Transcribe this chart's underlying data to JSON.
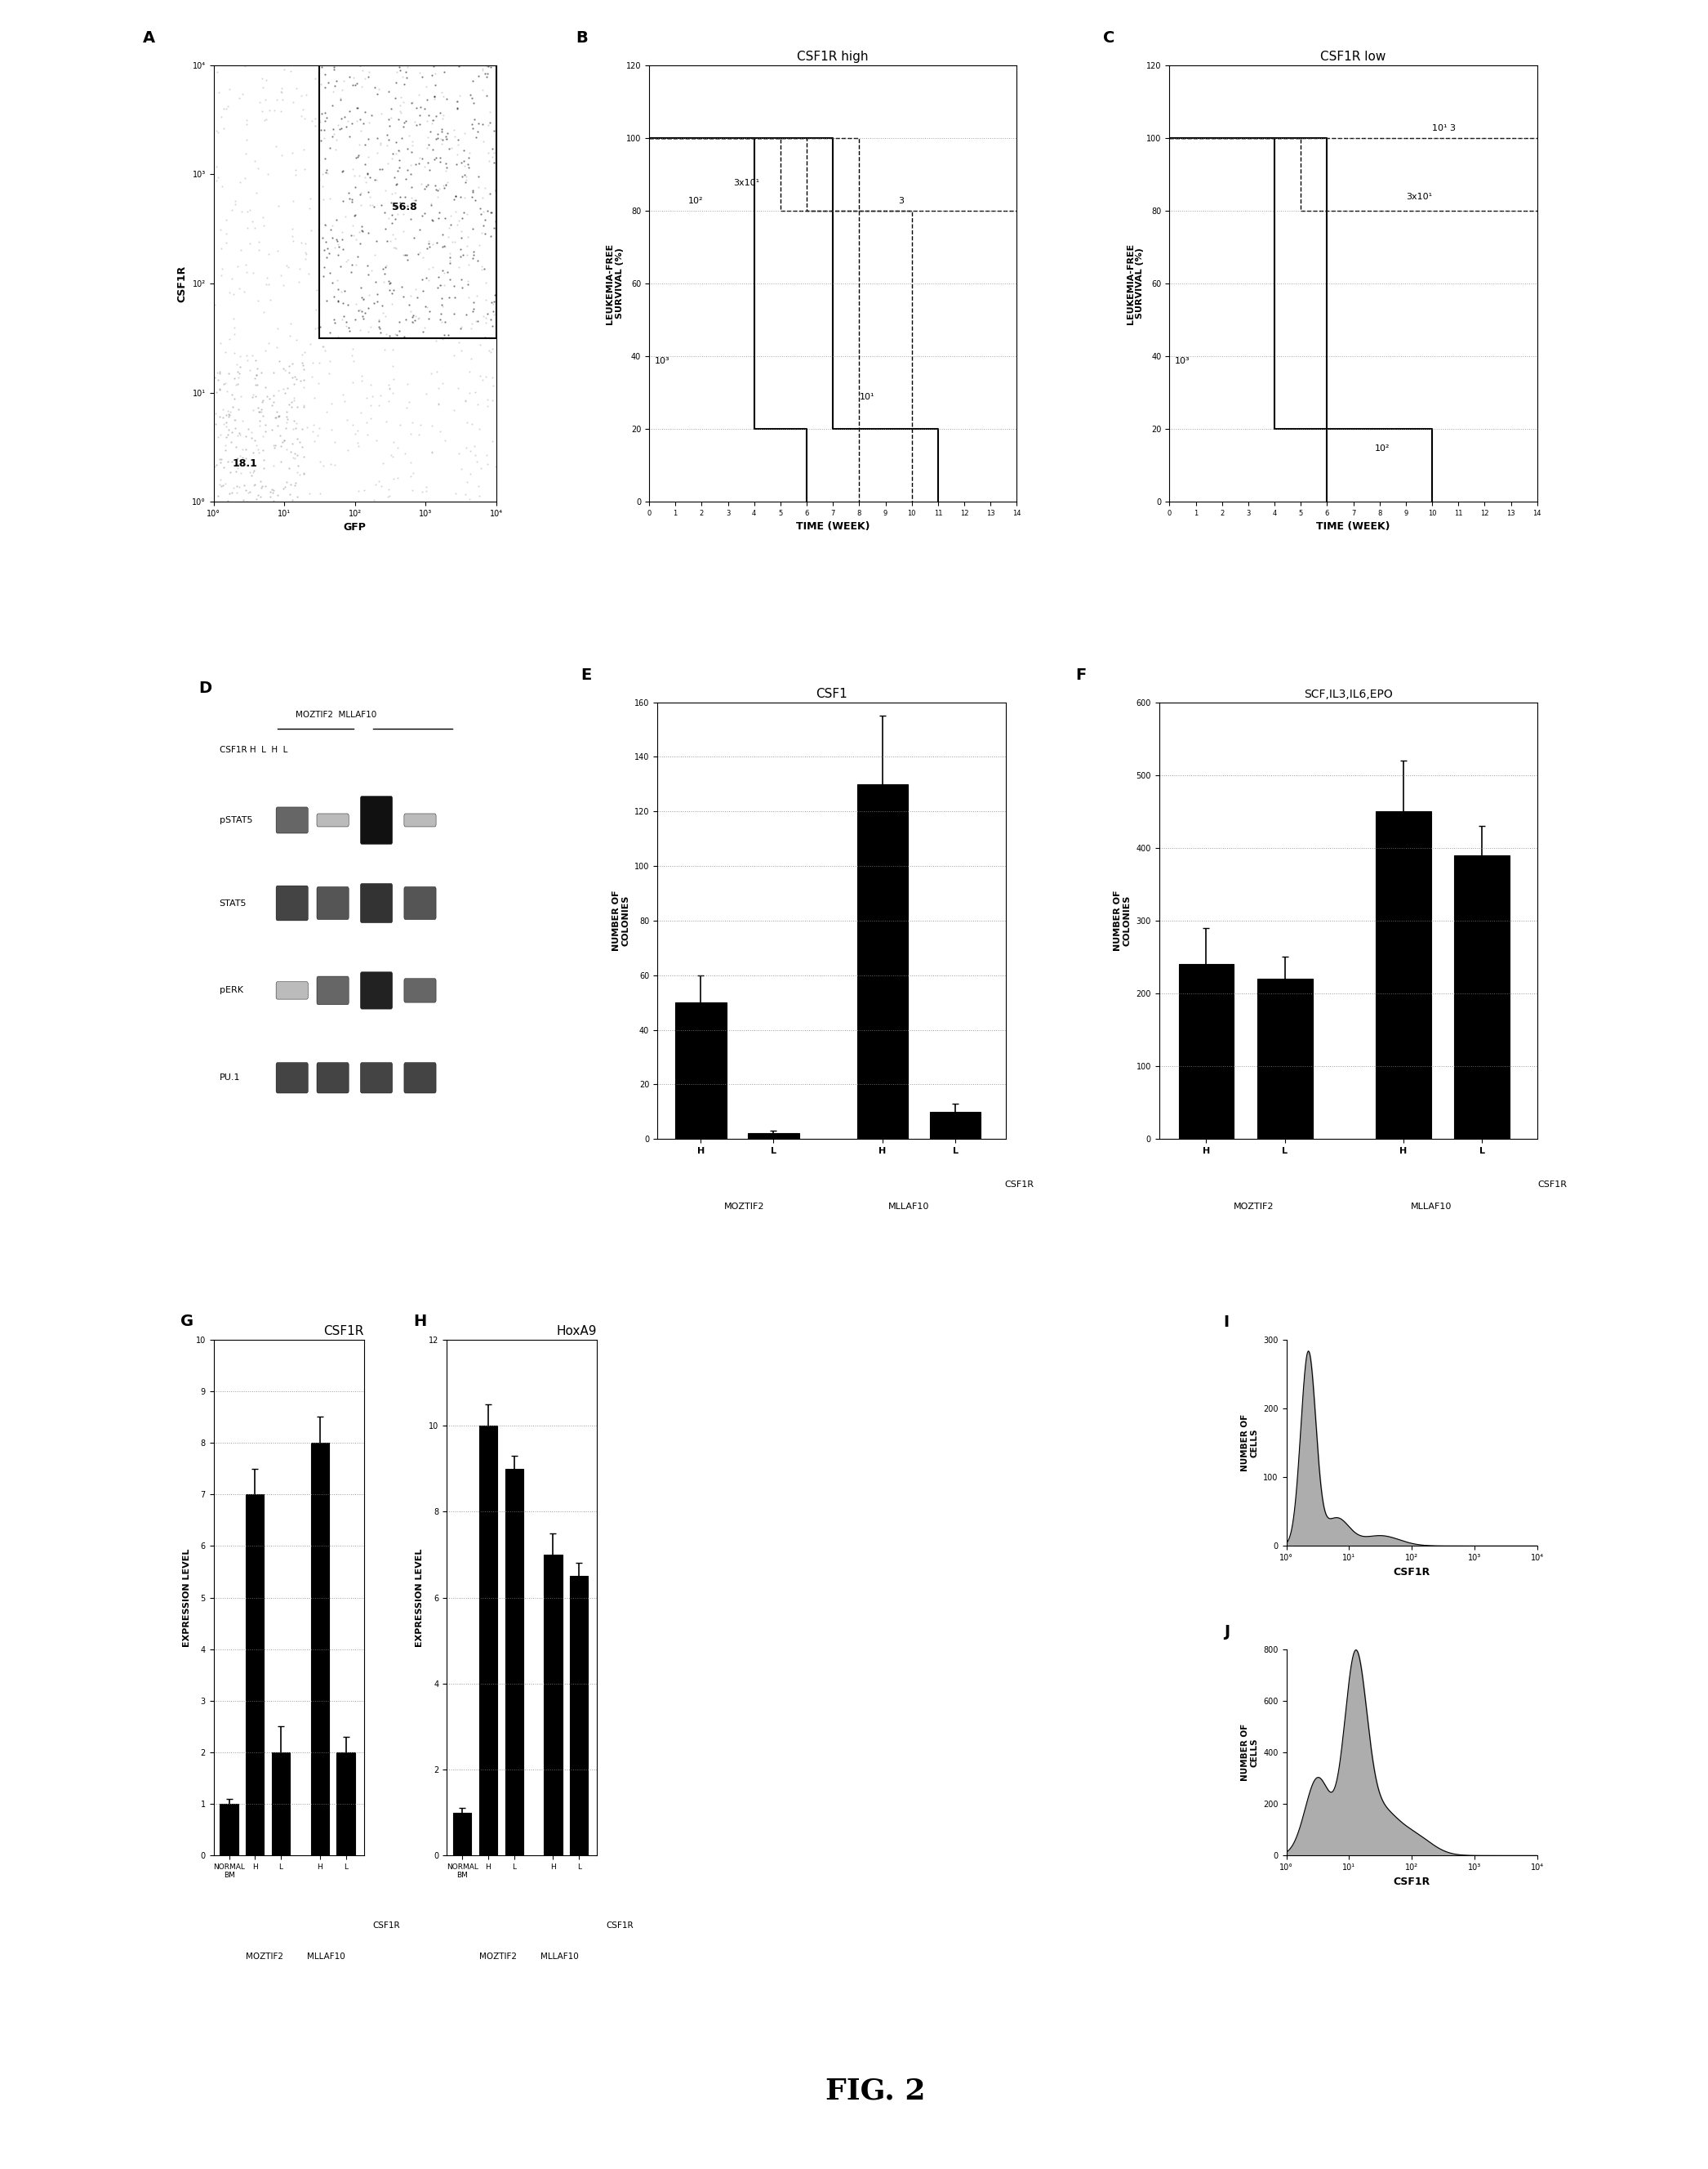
{
  "panel_A": {
    "label": "A",
    "xlabel": "GFP",
    "ylabel": "CSF1R",
    "xticklabels": [
      "10°",
      "10¹",
      "10²",
      "10³",
      "10⁴"
    ],
    "yticklabels": [
      "10°",
      "10¹",
      "10²",
      "10³",
      "10⁴"
    ],
    "annotation1": "56.8",
    "annotation2": "18.1"
  },
  "panel_B": {
    "label": "B",
    "title": "CSF1R high",
    "xlabel": "TIME (WEEK)",
    "ylabel": "LEUKEMIA-FREE\nSURVIVAL (%)"
  },
  "panel_C": {
    "label": "C",
    "title": "CSF1R low",
    "xlabel": "TIME (WEEK)",
    "ylabel": "LEUKEMIA-FREE\nSURVIVAL (%)"
  },
  "panel_D": {
    "label": "D",
    "bands": [
      "pSTAT5",
      "STAT5",
      "pERK",
      "PU.1"
    ]
  },
  "panel_E": {
    "label": "E",
    "title": "CSF1",
    "ylabel": "NUMBER OF\nCOLONIES",
    "ylim": [
      0,
      160
    ],
    "yticks": [
      0,
      20,
      40,
      60,
      80,
      100,
      120,
      140,
      160
    ],
    "bar_values": [
      50,
      2,
      130,
      10
    ],
    "bar_errors": [
      10,
      1,
      25,
      3
    ],
    "bar_color": "#000000"
  },
  "panel_F": {
    "label": "F",
    "title": "SCF,IL3,IL6,EPO",
    "ylabel": "NUMBER OF\nCOLONIES",
    "ylim": [
      0,
      600
    ],
    "yticks": [
      0,
      100,
      200,
      300,
      400,
      500,
      600
    ],
    "bar_values": [
      240,
      220,
      450,
      390
    ],
    "bar_errors": [
      50,
      30,
      70,
      40
    ],
    "bar_color": "#000000"
  },
  "panel_G": {
    "label": "G",
    "title": "CSF1R",
    "ylabel": "EXPRESSION LEVEL",
    "ylim": [
      0,
      10
    ],
    "yticks": [
      0,
      1,
      2,
      3,
      4,
      5,
      6,
      7,
      8,
      9,
      10
    ],
    "bar_values": [
      1,
      7,
      2,
      8,
      2
    ],
    "bar_errors": [
      0.1,
      0.5,
      0.5,
      0.5,
      0.3
    ],
    "bar_color": "#000000"
  },
  "panel_H": {
    "label": "H",
    "title": "HoxA9",
    "ylabel": "EXPRESSION LEVEL",
    "ylim": [
      0,
      12
    ],
    "yticks": [
      0,
      2,
      4,
      6,
      8,
      10,
      12
    ],
    "bar_values": [
      1,
      10,
      9,
      7,
      6.5
    ],
    "bar_errors": [
      0.1,
      0.5,
      0.3,
      0.5,
      0.3
    ],
    "bar_color": "#000000"
  },
  "panel_I": {
    "label": "I",
    "xlabel": "CSF1R",
    "ylabel": "NUMBER OF\nCELLS",
    "ylim": [
      0,
      300
    ],
    "yticks": [
      0,
      100,
      200,
      300
    ],
    "xticklabels": [
      "10°",
      "10¹",
      "10²",
      "10³",
      "10⁴"
    ]
  },
  "panel_J": {
    "label": "J",
    "xlabel": "CSF1R",
    "ylabel": "NUMBER OF\nCELLS",
    "ylim": [
      0,
      800
    ],
    "yticks": [
      0,
      200,
      400,
      600,
      800
    ],
    "xticklabels": [
      "10°",
      "10¹",
      "10²",
      "10³",
      "10⁴"
    ]
  },
  "figure_label": "FIG. 2",
  "background_color": "#ffffff"
}
